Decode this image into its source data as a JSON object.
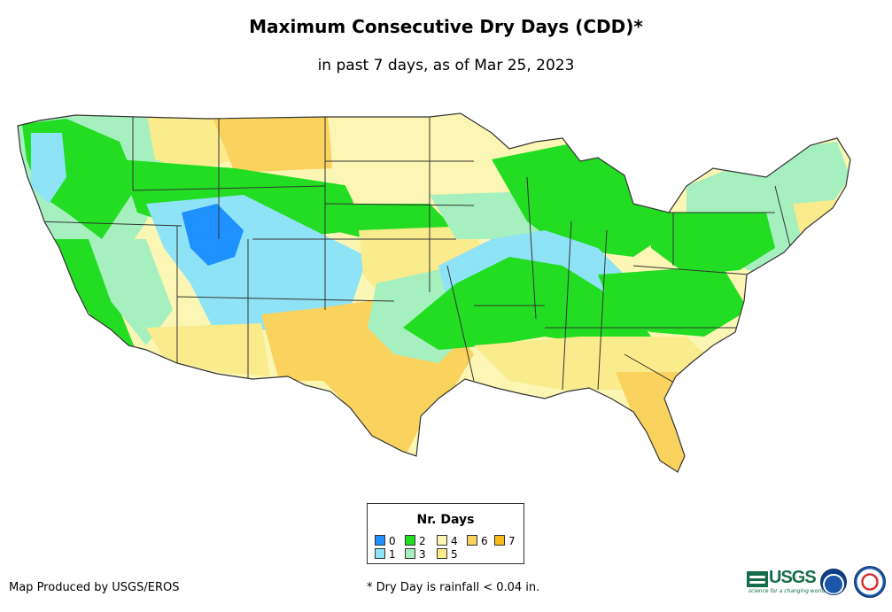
{
  "title": "Maximum Consecutive Dry Days (CDD)*",
  "subtitle": "in past 7 days, as of Mar 25, 2023",
  "legend": {
    "title": "Nr. Days",
    "items": [
      {
        "label": "0",
        "color": "#1e90ff"
      },
      {
        "label": "1",
        "color": "#8fe3f6"
      },
      {
        "label": "2",
        "color": "#22dd22"
      },
      {
        "label": "3",
        "color": "#a6f0c0"
      },
      {
        "label": "4",
        "color": "#fbf6b4"
      },
      {
        "label": "5",
        "color": "#faeb8c"
      },
      {
        "label": "6",
        "color": "#fad25e"
      },
      {
        "label": "7",
        "color": "#f9bb1a"
      }
    ]
  },
  "credit": "Map Produced by USGS/EROS",
  "footnote": "* Dry Day is rainfall < 0.04 in.",
  "logos": {
    "usgs_text": "USGS",
    "usgs_tagline": "science for a changing world",
    "noaa_icon": "noaa-logo",
    "nws_icon": "nws-logo"
  },
  "colors": {
    "state_border": "#333333",
    "background": "#ffffff"
  }
}
